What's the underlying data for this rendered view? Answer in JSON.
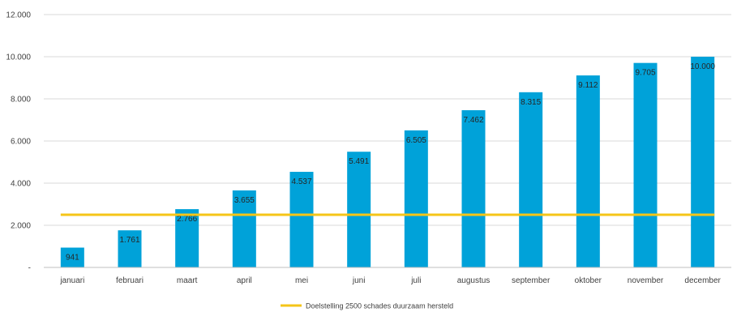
{
  "chart_data": {
    "type": "bar",
    "title": "",
    "xlabel": "",
    "ylabel": "",
    "categories": [
      "januari",
      "februari",
      "maart",
      "april",
      "mei",
      "juni",
      "juli",
      "augustus",
      "september",
      "oktober",
      "november",
      "december"
    ],
    "series": [
      {
        "type": "bar",
        "values": [
          941,
          1761,
          2766,
          3655,
          4537,
          5491,
          6505,
          7462,
          8315,
          9112,
          9705,
          10000
        ],
        "labels": [
          "941",
          "1.761",
          "2.766",
          "3.655",
          "4.537",
          "5.491",
          "6.505",
          "7.462",
          "8.315",
          "9.112",
          "9.705",
          "10.000"
        ],
        "color": "#00A2D9"
      },
      {
        "type": "line",
        "name": "Doelstelling 2500 schades duurzaam hersteld",
        "value": 2500,
        "color": "#F5C518"
      }
    ],
    "ylim": [
      0,
      12000
    ],
    "yticks": [
      0,
      2000,
      4000,
      6000,
      8000,
      10000,
      12000
    ],
    "ytick_labels": [
      "-",
      "2.000",
      "4.000",
      "6.000",
      "8.000",
      "10.000",
      "12.000"
    ],
    "grid": true,
    "legend": "bottom-center"
  }
}
